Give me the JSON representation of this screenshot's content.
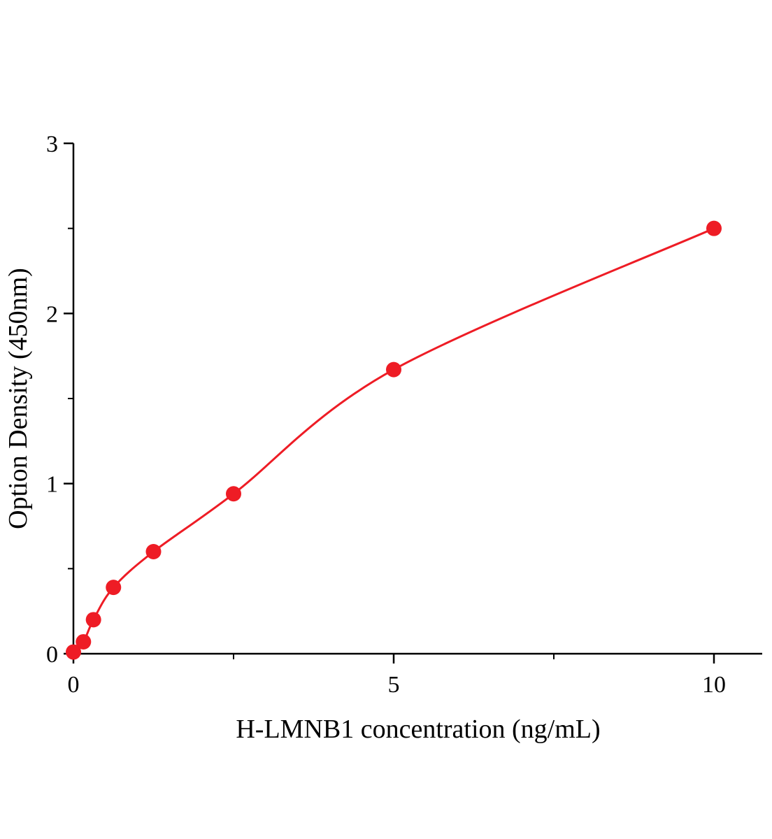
{
  "chart_data": {
    "type": "scatter",
    "title": "",
    "xlabel": "H-LMNB1  concentration (ng/mL)",
    "ylabel": "Option Density (450nm)",
    "x": [
      0,
      0.156,
      0.313,
      0.625,
      1.25,
      2.5,
      5,
      10
    ],
    "y": [
      0.01,
      0.07,
      0.2,
      0.39,
      0.6,
      0.94,
      1.67,
      2.5
    ],
    "curve": "smooth-fit-through-points",
    "xlim": [
      0,
      10.75
    ],
    "ylim": [
      0,
      3
    ],
    "x_major_ticks": [
      0,
      5,
      10
    ],
    "x_minor_ticks": [
      2.5,
      7.5
    ],
    "y_major_ticks": [
      0,
      1,
      2,
      3
    ],
    "y_minor_ticks": [
      0.5,
      1.5,
      2.5
    ],
    "grid": false,
    "legend": "none",
    "marker_color": "#ee1c25",
    "line_color": "#ee1c25",
    "axis_color": "#000000",
    "marker_radius": 11,
    "line_width": 3
  }
}
